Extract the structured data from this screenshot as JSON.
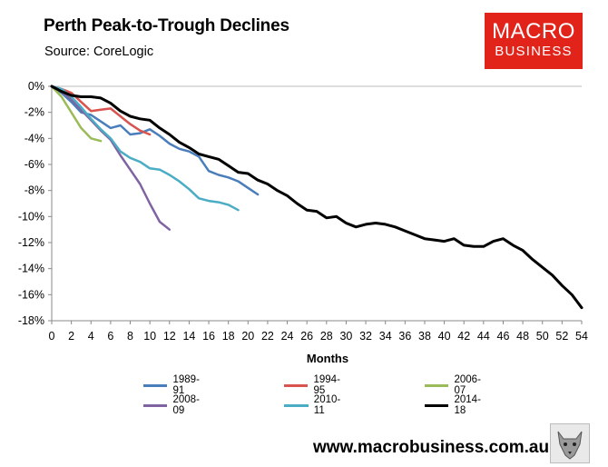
{
  "header": {
    "title": "Perth Peak-to-Trough Declines",
    "subtitle": "Source: CoreLogic"
  },
  "logo": {
    "line1": "MACRO",
    "line2": "BUSINESS",
    "color": "#e2231a"
  },
  "footer": {
    "url": "www.macrobusiness.com.au",
    "wolf_icon": "wolf-icon"
  },
  "chart_data": {
    "type": "line",
    "title": "Perth Peak-to-Trough Declines",
    "xlabel": "Months",
    "ylabel": "",
    "xlim": [
      0,
      54
    ],
    "ylim": [
      -18,
      0
    ],
    "xticks": [
      0,
      2,
      4,
      6,
      8,
      10,
      12,
      14,
      16,
      18,
      20,
      22,
      24,
      26,
      28,
      30,
      32,
      34,
      36,
      38,
      40,
      42,
      44,
      46,
      48,
      50,
      52,
      54
    ],
    "yticks": [
      0,
      -2,
      -4,
      -6,
      -8,
      -10,
      -12,
      -14,
      -16,
      -18
    ],
    "ytick_labels": [
      "0%",
      "-2%",
      "-4%",
      "-6%",
      "-8%",
      "-10%",
      "-12%",
      "-14%",
      "-16%",
      "-18%"
    ],
    "grid": false,
    "legend_position": "bottom",
    "series": [
      {
        "name": "1989-91",
        "color": "#4a7ebb",
        "width": 2.5,
        "x": [
          0,
          1,
          2,
          3,
          4,
          5,
          6,
          7,
          8,
          9,
          10,
          11,
          12,
          13,
          14,
          15,
          16,
          17,
          18,
          19,
          20,
          21
        ],
        "y": [
          0,
          -0.5,
          -1.2,
          -2.0,
          -2.2,
          -2.7,
          -3.2,
          -3.0,
          -3.7,
          -3.6,
          -3.3,
          -3.8,
          -4.4,
          -4.8,
          -5.0,
          -5.4,
          -6.5,
          -6.8,
          -7.0,
          -7.3,
          -7.8,
          -8.3
        ]
      },
      {
        "name": "1994-95",
        "color": "#d9534f",
        "width": 2.5,
        "x": [
          0,
          1,
          2,
          3,
          4,
          5,
          6,
          7,
          8,
          9,
          10
        ],
        "y": [
          0,
          -0.2,
          -0.5,
          -1.2,
          -1.9,
          -1.8,
          -1.7,
          -2.3,
          -2.9,
          -3.4,
          -3.7
        ]
      },
      {
        "name": "2006-07",
        "color": "#9bbb59",
        "width": 2.5,
        "x": [
          0,
          1,
          2,
          3,
          4,
          5
        ],
        "y": [
          0,
          -0.8,
          -2.0,
          -3.2,
          -4.0,
          -4.2
        ]
      },
      {
        "name": "2008-09",
        "color": "#8064a2",
        "width": 2.5,
        "x": [
          0,
          1,
          2,
          3,
          4,
          5,
          6,
          7,
          8,
          9,
          10,
          11,
          12
        ],
        "y": [
          0,
          -0.4,
          -1.0,
          -1.8,
          -2.6,
          -3.4,
          -4.1,
          -5.3,
          -6.4,
          -7.5,
          -9.0,
          -10.4,
          -11.0
        ]
      },
      {
        "name": "2010-11",
        "color": "#4bacc6",
        "width": 2.5,
        "x": [
          0,
          1,
          2,
          3,
          4,
          5,
          6,
          7,
          8,
          9,
          10,
          11,
          12,
          13,
          14,
          15,
          16,
          17,
          18,
          19
        ],
        "y": [
          0,
          -0.2,
          -0.8,
          -1.6,
          -2.5,
          -3.3,
          -4.0,
          -5.0,
          -5.5,
          -5.8,
          -6.3,
          -6.4,
          -6.8,
          -7.3,
          -7.9,
          -8.6,
          -8.8,
          -8.9,
          -9.1,
          -9.5
        ]
      },
      {
        "name": "2014-18",
        "color": "#000000",
        "width": 3,
        "x": [
          0,
          1,
          2,
          3,
          4,
          5,
          6,
          7,
          8,
          9,
          10,
          11,
          12,
          13,
          14,
          15,
          16,
          17,
          18,
          19,
          20,
          21,
          22,
          23,
          24,
          25,
          26,
          27,
          28,
          29,
          30,
          31,
          32,
          33,
          34,
          35,
          36,
          37,
          38,
          39,
          40,
          41,
          42,
          43,
          44,
          45,
          46,
          47,
          48,
          49,
          50,
          51,
          52,
          53,
          54
        ],
        "y": [
          0,
          -0.4,
          -0.7,
          -0.8,
          -0.8,
          -0.9,
          -1.3,
          -1.9,
          -2.3,
          -2.5,
          -2.6,
          -3.2,
          -3.7,
          -4.3,
          -4.7,
          -5.2,
          -5.4,
          -5.6,
          -6.1,
          -6.6,
          -6.7,
          -7.2,
          -7.5,
          -8.0,
          -8.4,
          -9.0,
          -9.5,
          -9.6,
          -10.1,
          -10.0,
          -10.5,
          -10.8,
          -10.6,
          -10.5,
          -10.6,
          -10.8,
          -11.1,
          -11.4,
          -11.7,
          -11.8,
          -11.9,
          -11.7,
          -12.2,
          -12.3,
          -12.3,
          -11.9,
          -11.7,
          -12.2,
          -12.6,
          -13.3,
          -13.9,
          -14.5,
          -15.3,
          -16.0,
          -17.0
        ]
      }
    ]
  }
}
